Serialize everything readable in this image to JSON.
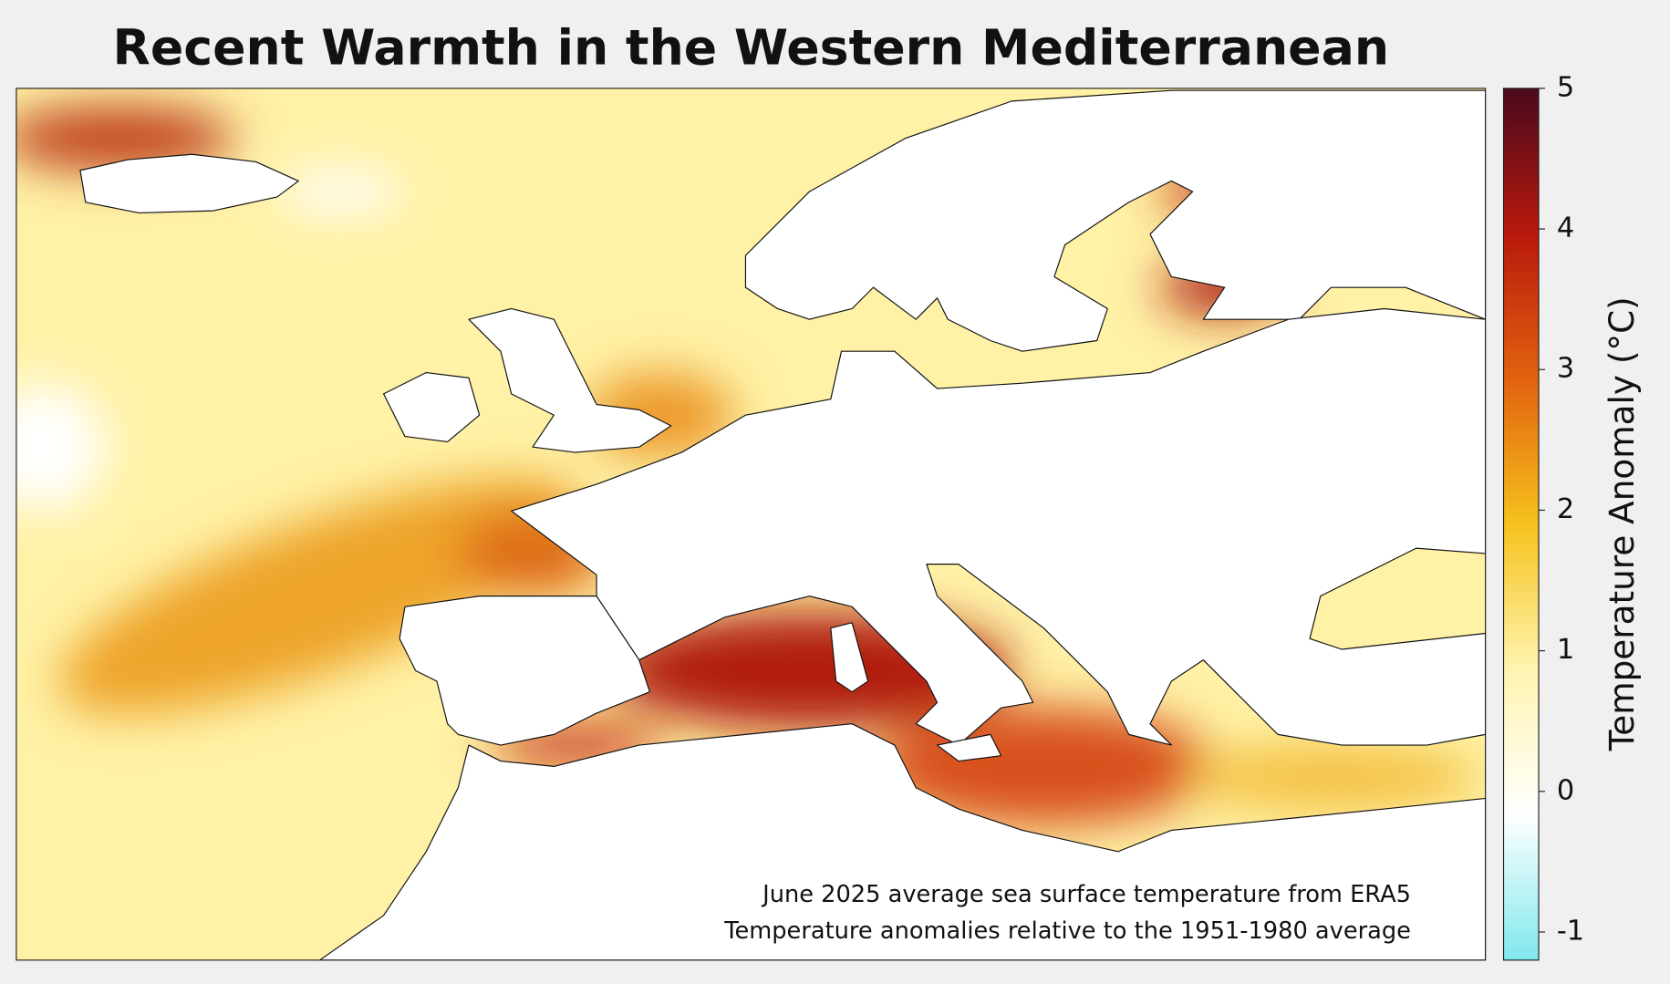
{
  "title": "Recent Warmth in the Western Mediterranean",
  "annotations": [
    "June 2025 average sea surface temperature from ERA5",
    "Temperature anomalies relative to the 1951-1980 average"
  ],
  "colorbar": {
    "label": "Temperature Anomaly (°C)",
    "lim": [
      -1.2,
      5
    ],
    "ticks": [
      -1,
      0,
      1,
      2,
      3,
      4,
      5
    ],
    "colors": [
      "#7fe8ec",
      "#ffffff",
      "#fff4b0",
      "#f6c21c",
      "#e2620f",
      "#b8180c",
      "#4a0a1e"
    ]
  }
}
